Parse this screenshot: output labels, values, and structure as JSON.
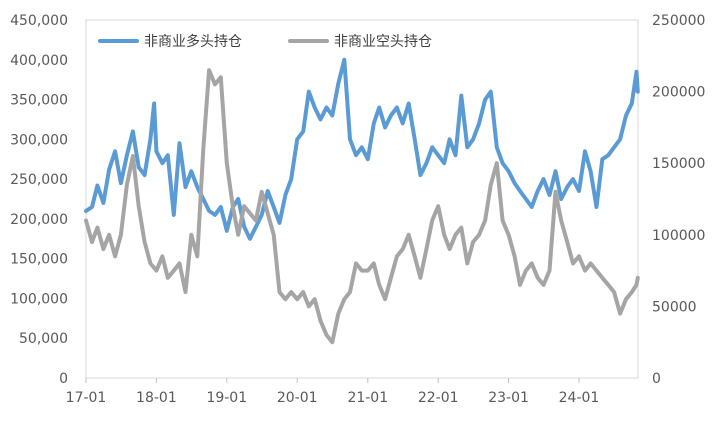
{
  "chart_data": {
    "type": "line",
    "title": "",
    "xlabel": "",
    "ylabel": "",
    "x_tick_labels": [
      "17-01",
      "18-01",
      "19-01",
      "20-01",
      "21-01",
      "22-01",
      "23-01",
      "24-01"
    ],
    "y_left": {
      "min": 0,
      "max": 450000,
      "tick_labels": [
        "0",
        "50,000",
        "100,000",
        "150,000",
        "200,000",
        "250,000",
        "300,000",
        "350,000",
        "400,000",
        "450,000"
      ]
    },
    "y_right": {
      "min": 0,
      "max": 250000,
      "tick_labels": [
        "0",
        "50000",
        "100000",
        "150000",
        "200000",
        "250000"
      ]
    },
    "legend_position": "top-left",
    "grid": false,
    "series": [
      {
        "name": "非商业多头持仓",
        "axis": "left",
        "color": "#5b9bd5",
        "points": [
          [
            "2017-01-01",
            210000
          ],
          [
            "2017-02-01",
            215000
          ],
          [
            "2017-03-01",
            242000
          ],
          [
            "2017-04-01",
            220000
          ],
          [
            "2017-05-01",
            262000
          ],
          [
            "2017-06-01",
            285000
          ],
          [
            "2017-07-01",
            245000
          ],
          [
            "2017-08-01",
            280000
          ],
          [
            "2017-09-01",
            310000
          ],
          [
            "2017-10-01",
            265000
          ],
          [
            "2017-11-01",
            255000
          ],
          [
            "2017-12-01",
            300000
          ],
          [
            "2017-12-20",
            345000
          ],
          [
            "2018-01-01",
            285000
          ],
          [
            "2018-02-01",
            270000
          ],
          [
            "2018-03-01",
            280000
          ],
          [
            "2018-04-01",
            205000
          ],
          [
            "2018-05-01",
            295000
          ],
          [
            "2018-06-01",
            240000
          ],
          [
            "2018-07-01",
            260000
          ],
          [
            "2018-08-01",
            240000
          ],
          [
            "2018-09-01",
            225000
          ],
          [
            "2018-10-01",
            210000
          ],
          [
            "2018-11-01",
            205000
          ],
          [
            "2018-12-01",
            215000
          ],
          [
            "2019-01-01",
            185000
          ],
          [
            "2019-02-01",
            215000
          ],
          [
            "2019-03-01",
            225000
          ],
          [
            "2019-04-01",
            190000
          ],
          [
            "2019-05-01",
            175000
          ],
          [
            "2019-06-01",
            190000
          ],
          [
            "2019-07-01",
            205000
          ],
          [
            "2019-08-01",
            235000
          ],
          [
            "2019-09-01",
            215000
          ],
          [
            "2019-10-01",
            195000
          ],
          [
            "2019-11-01",
            230000
          ],
          [
            "2019-12-01",
            250000
          ],
          [
            "2020-01-01",
            300000
          ],
          [
            "2020-02-01",
            310000
          ],
          [
            "2020-03-01",
            360000
          ],
          [
            "2020-04-01",
            340000
          ],
          [
            "2020-05-01",
            325000
          ],
          [
            "2020-06-01",
            340000
          ],
          [
            "2020-07-01",
            330000
          ],
          [
            "2020-08-01",
            370000
          ],
          [
            "2020-09-01",
            400000
          ],
          [
            "2020-10-01",
            300000
          ],
          [
            "2020-11-01",
            280000
          ],
          [
            "2020-12-01",
            290000
          ],
          [
            "2021-01-01",
            275000
          ],
          [
            "2021-02-01",
            320000
          ],
          [
            "2021-03-01",
            340000
          ],
          [
            "2021-04-01",
            315000
          ],
          [
            "2021-05-01",
            330000
          ],
          [
            "2021-06-01",
            340000
          ],
          [
            "2021-07-01",
            320000
          ],
          [
            "2021-08-01",
            345000
          ],
          [
            "2021-09-01",
            300000
          ],
          [
            "2021-10-01",
            255000
          ],
          [
            "2021-11-01",
            270000
          ],
          [
            "2021-12-01",
            290000
          ],
          [
            "2022-01-01",
            280000
          ],
          [
            "2022-02-01",
            270000
          ],
          [
            "2022-03-01",
            300000
          ],
          [
            "2022-04-01",
            280000
          ],
          [
            "2022-05-01",
            355000
          ],
          [
            "2022-06-01",
            290000
          ],
          [
            "2022-07-01",
            300000
          ],
          [
            "2022-08-01",
            320000
          ],
          [
            "2022-09-01",
            350000
          ],
          [
            "2022-10-01",
            360000
          ],
          [
            "2022-11-01",
            290000
          ],
          [
            "2022-12-01",
            270000
          ],
          [
            "2023-01-01",
            260000
          ],
          [
            "2023-02-01",
            245000
          ],
          [
            "2023-03-01",
            235000
          ],
          [
            "2023-04-01",
            225000
          ],
          [
            "2023-05-01",
            215000
          ],
          [
            "2023-06-01",
            235000
          ],
          [
            "2023-07-01",
            250000
          ],
          [
            "2023-08-01",
            230000
          ],
          [
            "2023-09-01",
            260000
          ],
          [
            "2023-10-01",
            225000
          ],
          [
            "2023-11-01",
            240000
          ],
          [
            "2023-12-01",
            250000
          ],
          [
            "2024-01-01",
            235000
          ],
          [
            "2024-02-01",
            285000
          ],
          [
            "2024-03-01",
            260000
          ],
          [
            "2024-04-01",
            215000
          ],
          [
            "2024-05-01",
            275000
          ],
          [
            "2024-06-01",
            280000
          ],
          [
            "2024-07-01",
            290000
          ],
          [
            "2024-08-01",
            300000
          ],
          [
            "2024-09-01",
            330000
          ],
          [
            "2024-10-01",
            345000
          ],
          [
            "2024-10-25",
            385000
          ],
          [
            "2024-11-01",
            360000
          ]
        ]
      },
      {
        "name": "非商业空头持仓",
        "axis": "right",
        "color": "#a5a5a5",
        "points": [
          [
            "2017-01-01",
            110000
          ],
          [
            "2017-02-01",
            95000
          ],
          [
            "2017-03-01",
            105000
          ],
          [
            "2017-04-01",
            90000
          ],
          [
            "2017-05-01",
            100000
          ],
          [
            "2017-06-01",
            85000
          ],
          [
            "2017-07-01",
            100000
          ],
          [
            "2017-08-01",
            135000
          ],
          [
            "2017-09-01",
            155000
          ],
          [
            "2017-10-01",
            120000
          ],
          [
            "2017-11-01",
            95000
          ],
          [
            "2017-12-01",
            80000
          ],
          [
            "2018-01-01",
            75000
          ],
          [
            "2018-02-01",
            85000
          ],
          [
            "2018-03-01",
            70000
          ],
          [
            "2018-04-01",
            75000
          ],
          [
            "2018-05-01",
            80000
          ],
          [
            "2018-06-01",
            60000
          ],
          [
            "2018-07-01",
            100000
          ],
          [
            "2018-08-01",
            85000
          ],
          [
            "2018-09-01",
            160000
          ],
          [
            "2018-10-01",
            215000
          ],
          [
            "2018-11-01",
            205000
          ],
          [
            "2018-12-01",
            210000
          ],
          [
            "2019-01-01",
            150000
          ],
          [
            "2019-02-01",
            120000
          ],
          [
            "2019-03-01",
            100000
          ],
          [
            "2019-04-01",
            120000
          ],
          [
            "2019-05-01",
            115000
          ],
          [
            "2019-06-01",
            110000
          ],
          [
            "2019-07-01",
            130000
          ],
          [
            "2019-08-01",
            115000
          ],
          [
            "2019-09-01",
            100000
          ],
          [
            "2019-10-01",
            60000
          ],
          [
            "2019-11-01",
            55000
          ],
          [
            "2019-12-01",
            60000
          ],
          [
            "2020-01-01",
            55000
          ],
          [
            "2020-02-01",
            60000
          ],
          [
            "2020-03-01",
            50000
          ],
          [
            "2020-04-01",
            55000
          ],
          [
            "2020-05-01",
            40000
          ],
          [
            "2020-06-01",
            30000
          ],
          [
            "2020-07-01",
            25000
          ],
          [
            "2020-08-01",
            45000
          ],
          [
            "2020-09-01",
            55000
          ],
          [
            "2020-10-01",
            60000
          ],
          [
            "2020-11-01",
            80000
          ],
          [
            "2020-12-01",
            75000
          ],
          [
            "2021-01-01",
            75000
          ],
          [
            "2021-02-01",
            80000
          ],
          [
            "2021-03-01",
            65000
          ],
          [
            "2021-04-01",
            55000
          ],
          [
            "2021-05-01",
            70000
          ],
          [
            "2021-06-01",
            85000
          ],
          [
            "2021-07-01",
            90000
          ],
          [
            "2021-08-01",
            100000
          ],
          [
            "2021-09-01",
            85000
          ],
          [
            "2021-10-01",
            70000
          ],
          [
            "2021-11-01",
            90000
          ],
          [
            "2021-12-01",
            110000
          ],
          [
            "2022-01-01",
            120000
          ],
          [
            "2022-02-01",
            100000
          ],
          [
            "2022-03-01",
            90000
          ],
          [
            "2022-04-01",
            100000
          ],
          [
            "2022-05-01",
            105000
          ],
          [
            "2022-06-01",
            80000
          ],
          [
            "2022-07-01",
            95000
          ],
          [
            "2022-08-01",
            100000
          ],
          [
            "2022-09-01",
            110000
          ],
          [
            "2022-10-01",
            135000
          ],
          [
            "2022-11-01",
            150000
          ],
          [
            "2022-12-01",
            110000
          ],
          [
            "2023-01-01",
            100000
          ],
          [
            "2023-02-01",
            85000
          ],
          [
            "2023-03-01",
            65000
          ],
          [
            "2023-04-01",
            75000
          ],
          [
            "2023-05-01",
            80000
          ],
          [
            "2023-06-01",
            70000
          ],
          [
            "2023-07-01",
            65000
          ],
          [
            "2023-08-01",
            75000
          ],
          [
            "2023-09-01",
            130000
          ],
          [
            "2023-10-01",
            110000
          ],
          [
            "2023-11-01",
            95000
          ],
          [
            "2023-12-01",
            80000
          ],
          [
            "2024-01-01",
            85000
          ],
          [
            "2024-02-01",
            75000
          ],
          [
            "2024-03-01",
            80000
          ],
          [
            "2024-04-01",
            75000
          ],
          [
            "2024-05-01",
            70000
          ],
          [
            "2024-06-01",
            65000
          ],
          [
            "2024-07-01",
            60000
          ],
          [
            "2024-08-01",
            45000
          ],
          [
            "2024-09-01",
            55000
          ],
          [
            "2024-10-01",
            60000
          ],
          [
            "2024-10-25",
            65000
          ],
          [
            "2024-11-01",
            70000
          ]
        ]
      }
    ]
  }
}
